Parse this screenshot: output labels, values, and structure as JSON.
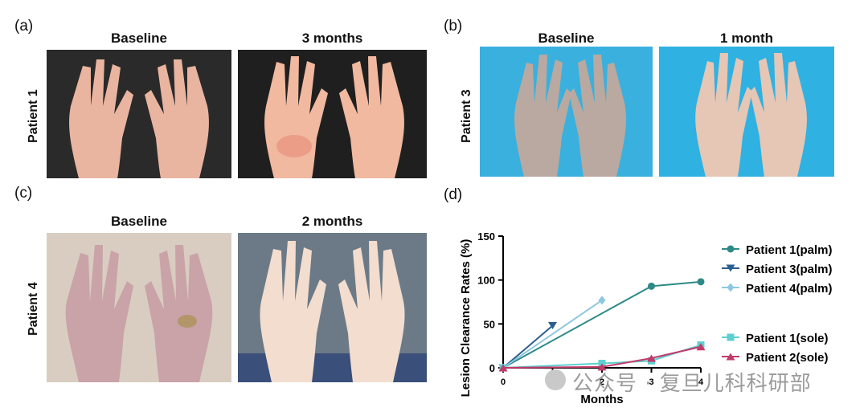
{
  "panels": {
    "a": {
      "letter": "(a)",
      "patient": "Patient 1",
      "left_title": "Baseline",
      "right_title": "3 months"
    },
    "b": {
      "letter": "(b)",
      "patient": "Patient 3",
      "left_title": "Baseline",
      "right_title": "1 month"
    },
    "c": {
      "letter": "(c)",
      "patient": "Patient 4",
      "left_title": "Baseline",
      "right_title": "2 months"
    },
    "d": {
      "letter": "(d)"
    }
  },
  "colors": {
    "p1_palm": "#2d8a86",
    "p3_palm": "#2b5f8f",
    "p4_palm": "#8ec7e0",
    "p1_sole": "#5fcfd0",
    "p2_sole": "#c23a6a"
  },
  "chart_data": {
    "type": "line",
    "xlabel": "Months",
    "ylabel": "Lesion Clearance Rates (%)",
    "xlim": [
      0,
      4
    ],
    "ylim": [
      0,
      150
    ],
    "xticks": [
      0,
      1,
      2,
      3,
      4
    ],
    "yticks": [
      0,
      50,
      100,
      150
    ],
    "legend_position": "right",
    "series": [
      {
        "name": "Patient 1(palm)",
        "marker": "circle",
        "color": "#2d8a86",
        "x": [
          0,
          3,
          4
        ],
        "y": [
          0,
          93,
          98
        ]
      },
      {
        "name": "Patient 3(palm)",
        "marker": "triangle-down",
        "color": "#2b5f8f",
        "x": [
          0,
          1
        ],
        "y": [
          0,
          48
        ]
      },
      {
        "name": "Patient 4(palm)",
        "marker": "diamond",
        "color": "#8ec7e0",
        "x": [
          0,
          2
        ],
        "y": [
          0,
          77
        ]
      },
      {
        "name": "Patient 1(sole)",
        "marker": "square",
        "color": "#5fcfd0",
        "x": [
          0,
          2,
          3,
          4
        ],
        "y": [
          0,
          5,
          8,
          26
        ]
      },
      {
        "name": "Patient 2(sole)",
        "marker": "triangle-up",
        "color": "#c23a6a",
        "x": [
          0,
          2,
          3,
          4
        ],
        "y": [
          0,
          1,
          11,
          24
        ]
      }
    ]
  },
  "watermark": {
    "text": "公众号 · 复旦儿科科研部"
  }
}
